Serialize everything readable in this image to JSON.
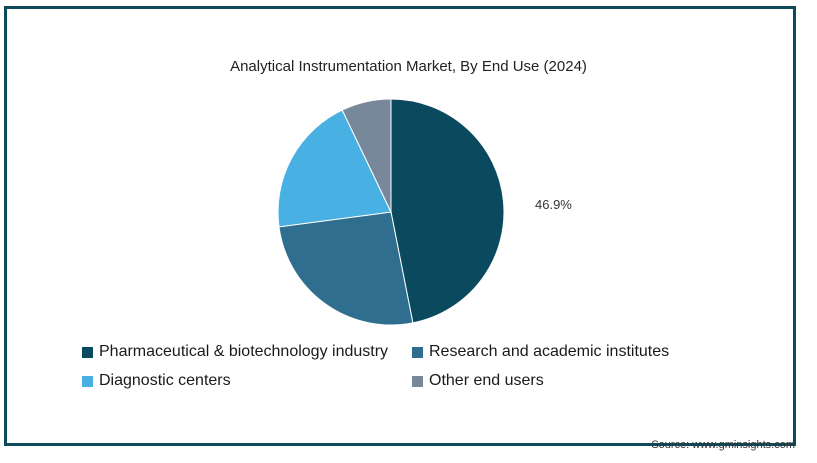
{
  "chart_data": {
    "type": "pie",
    "title": "Analytical Instrumentation Market, By End Use (2024)",
    "slices": [
      {
        "label": "Pharmaceutical & biotechnology industry",
        "value": 46.9,
        "color": "#0b4a5e",
        "data_label": "46.9%"
      },
      {
        "label": "Research and academic institutes",
        "value": 26.0,
        "color": "#2f6e8e",
        "data_label": ""
      },
      {
        "label": "Diagnostic centers",
        "value": 20.0,
        "color": "#49b0e3",
        "data_label": ""
      },
      {
        "label": "Other end users",
        "value": 7.1,
        "color": "#76889a",
        "data_label": ""
      }
    ],
    "legend_position": "bottom"
  },
  "source": "Source: www.gminsights.com"
}
